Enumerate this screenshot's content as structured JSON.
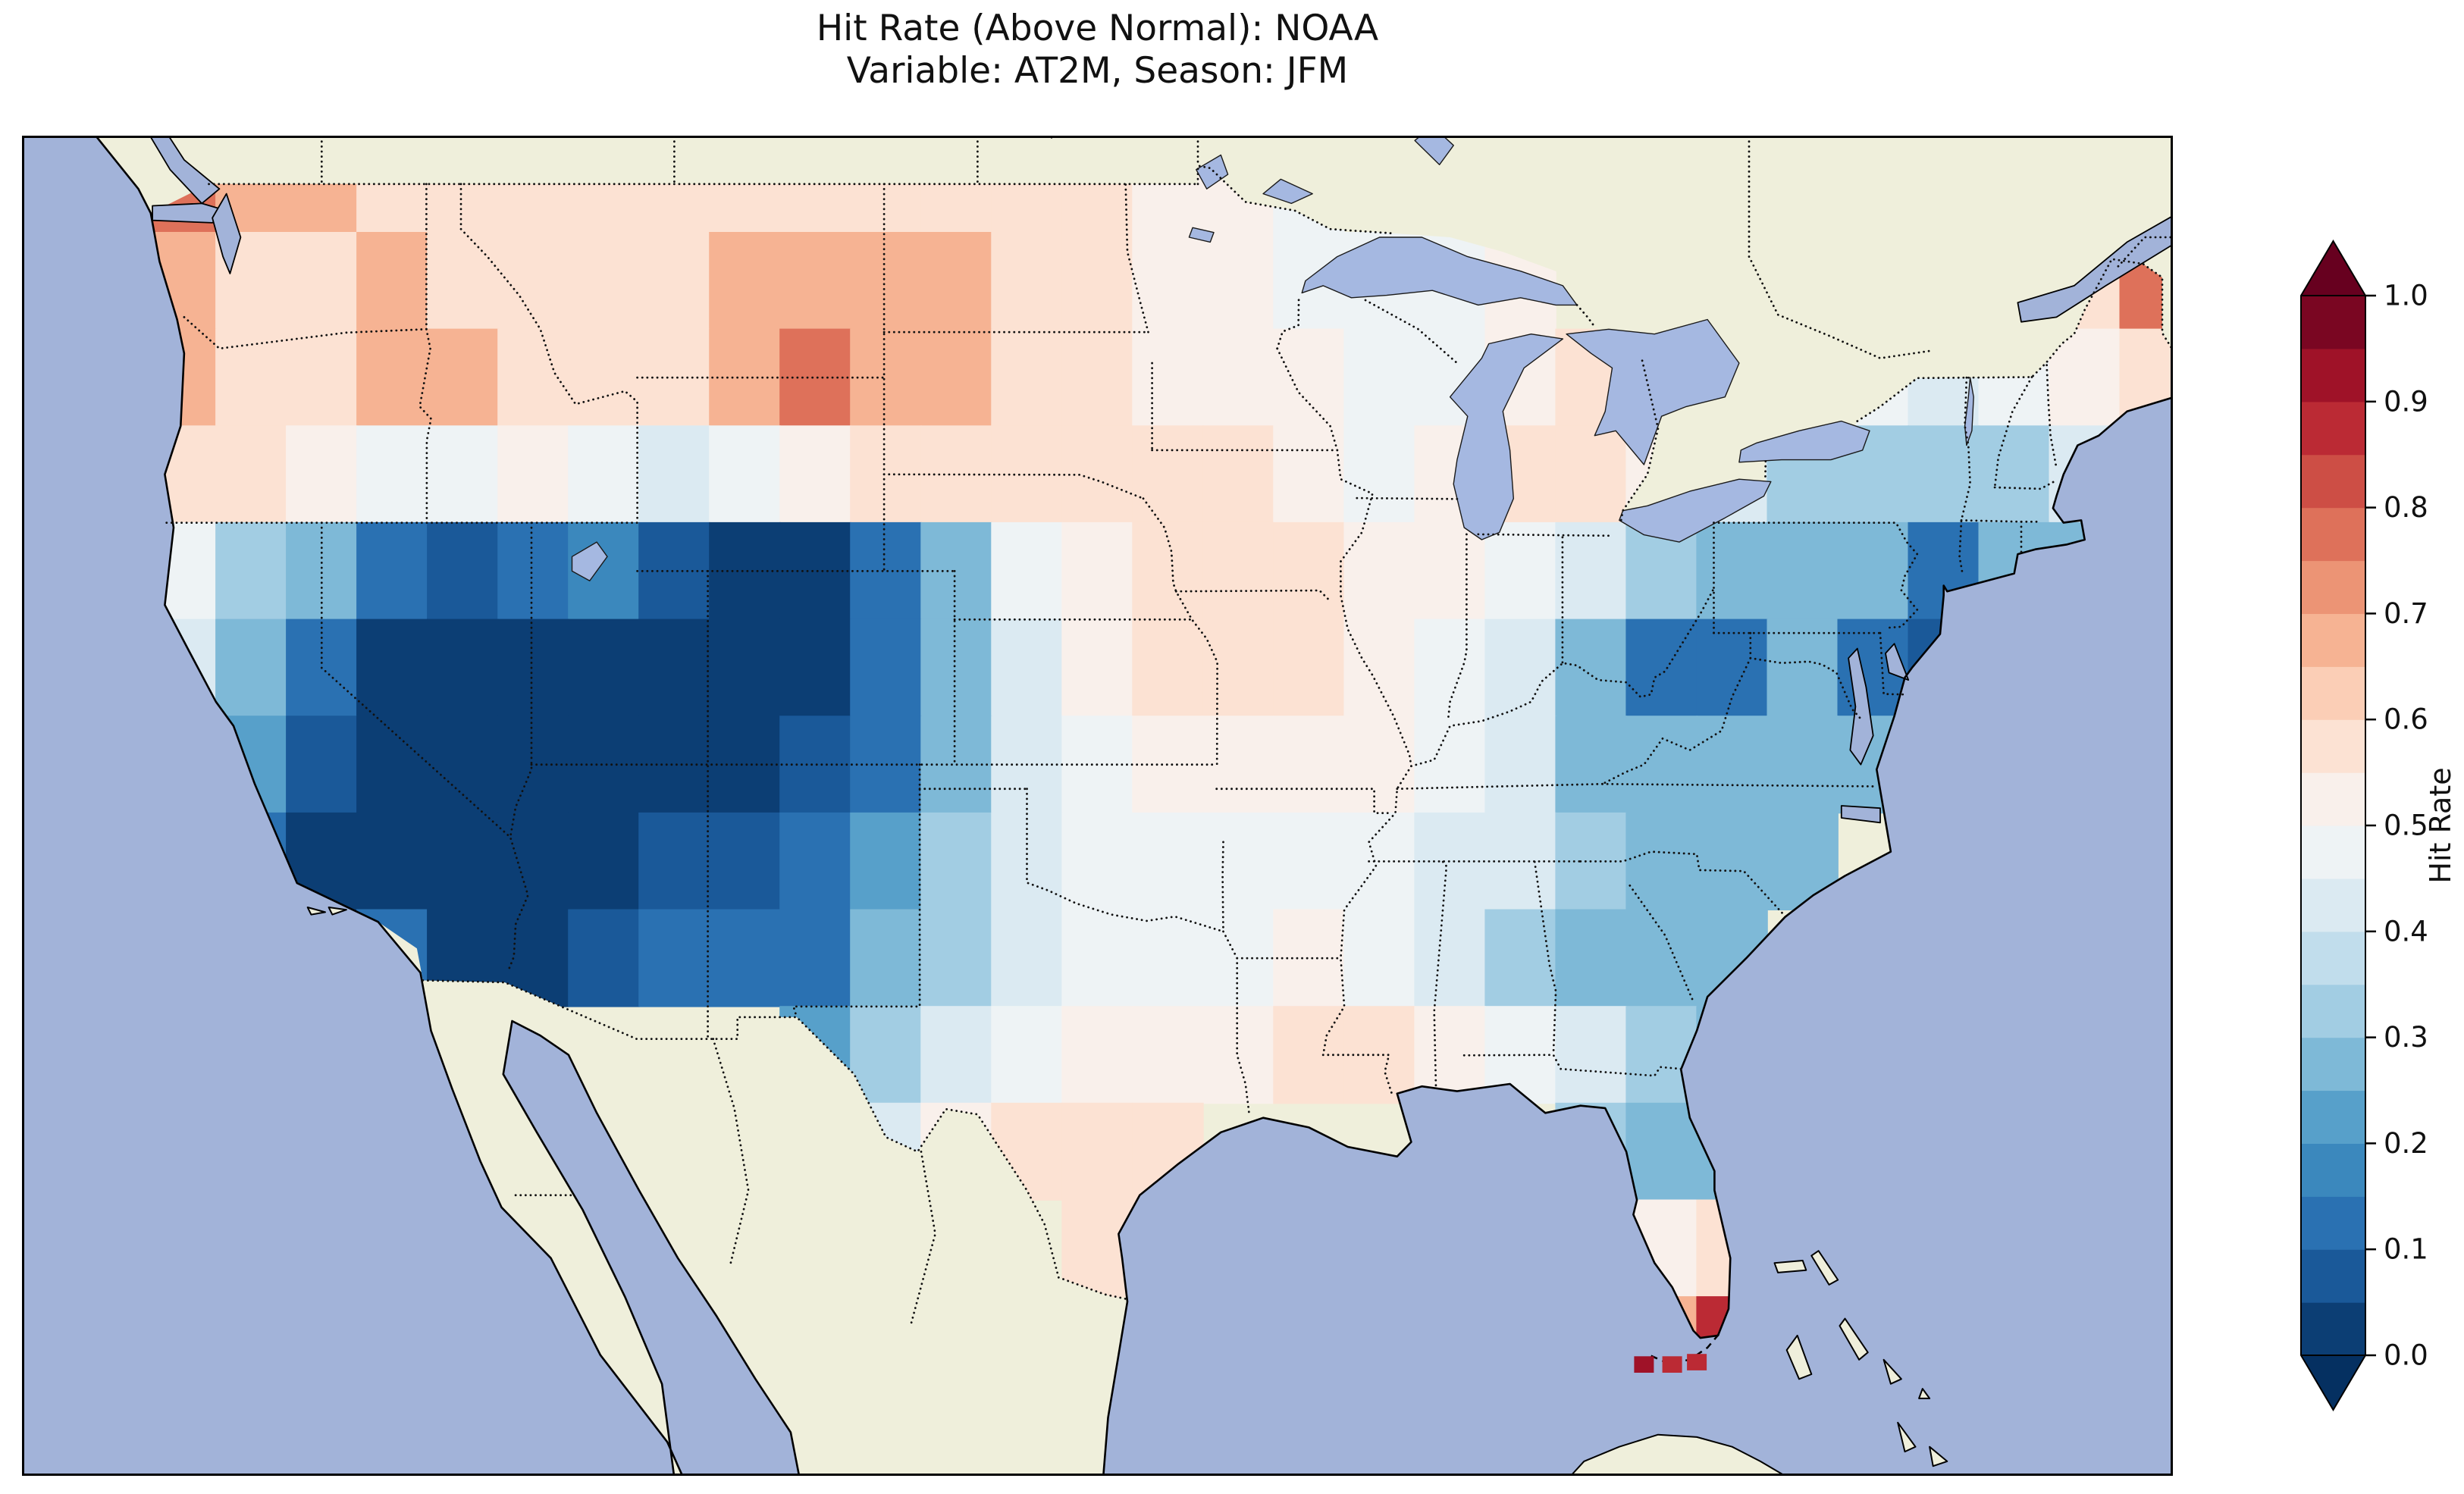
{
  "figure": {
    "title_line1": "Hit Rate (Above Normal): NOAA",
    "title_line2": "Variable: AT2M, Season: JFM"
  },
  "colorbar": {
    "label": "Hit Rate",
    "tick_labels": [
      "0.0",
      "0.1",
      "0.2",
      "0.3",
      "0.4",
      "0.5",
      "0.6",
      "0.7",
      "0.8",
      "0.9",
      "1.0"
    ],
    "vmin": 0.0,
    "vmax": 1.0,
    "band_step": 0.05,
    "colormap": "RdBu_r",
    "extend": "both"
  },
  "chart_data": {
    "type": "heatmap",
    "title": "Hit Rate (Above Normal): NOAA",
    "subtitle": "Variable: AT2M, Season: JFM",
    "metric": "Hit Rate (Above Normal)",
    "source": "NOAA",
    "variable": "AT2M",
    "season": "JFM",
    "region": "Contiguous United States",
    "colormap": "RdBu_r",
    "vmin": 0,
    "vmax": 1,
    "colorbar_label": "Hit Rate",
    "grid": {
      "lon_center_start": -124,
      "lon_step": 2,
      "n_lon": 30,
      "lat_center_start": 49,
      "lat_step": -2,
      "n_lat": 13,
      "units": "degrees"
    },
    "values": [
      [
        0.75,
        0.65,
        0.7,
        0.6,
        0.55,
        0.55,
        0.55,
        0.55,
        0.6,
        0.6,
        0.6,
        0.55,
        0.55,
        0.55,
        0.5,
        0.5,
        0.45,
        null,
        null,
        null,
        null,
        null,
        null,
        null,
        null,
        null,
        null,
        null,
        null,
        null
      ],
      [
        0.7,
        0.55,
        0.6,
        0.65,
        0.6,
        0.6,
        0.55,
        0.6,
        0.65,
        0.7,
        0.7,
        0.65,
        0.6,
        0.55,
        0.5,
        0.5,
        0.45,
        0.45,
        0.45,
        0.5,
        null,
        null,
        null,
        null,
        null,
        null,
        null,
        0.6,
        0.75,
        null
      ],
      [
        0.7,
        0.6,
        0.6,
        0.7,
        0.65,
        0.6,
        0.55,
        0.6,
        0.7,
        0.75,
        0.7,
        0.65,
        0.6,
        0.55,
        0.5,
        0.5,
        0.5,
        0.45,
        0.45,
        0.5,
        0.55,
        null,
        null,
        null,
        0.45,
        0.4,
        0.45,
        0.5,
        0.55,
        null
      ],
      [
        0.6,
        0.55,
        0.5,
        0.45,
        0.45,
        0.5,
        0.45,
        0.4,
        0.45,
        0.5,
        0.55,
        0.55,
        0.55,
        0.55,
        0.55,
        0.55,
        0.5,
        0.45,
        0.5,
        0.55,
        0.55,
        0.5,
        0.4,
        0.35,
        0.35,
        0.35,
        0.35,
        0.4,
        0.45,
        null
      ],
      [
        0.45,
        0.35,
        0.25,
        0.15,
        0.08,
        0.12,
        0.18,
        0.08,
        0.04,
        0.04,
        0.15,
        0.3,
        0.45,
        0.5,
        0.55,
        0.55,
        0.55,
        0.5,
        0.5,
        0.45,
        0.4,
        0.35,
        0.3,
        0.3,
        0.25,
        0.12,
        0.25,
        0.3,
        null,
        null
      ],
      [
        0.4,
        0.3,
        0.1,
        0.04,
        0.02,
        0.02,
        0.04,
        0.04,
        0.02,
        0.04,
        0.1,
        0.3,
        0.4,
        0.5,
        0.55,
        0.55,
        0.55,
        0.5,
        0.45,
        0.4,
        0.25,
        0.1,
        0.15,
        0.25,
        0.15,
        0.05,
        null,
        null,
        null,
        null
      ],
      [
        0.35,
        0.2,
        0.05,
        0.02,
        0.02,
        0.02,
        0.04,
        0.04,
        0.02,
        0.05,
        0.1,
        0.25,
        0.4,
        0.45,
        0.5,
        0.5,
        0.5,
        0.5,
        0.45,
        0.4,
        0.3,
        0.3,
        0.3,
        0.3,
        0.25,
        0.2,
        null,
        null,
        null,
        null
      ],
      [
        0.3,
        0.1,
        0.02,
        0.02,
        0.02,
        0.02,
        0.02,
        0.05,
        0.05,
        0.1,
        0.2,
        0.35,
        0.4,
        0.45,
        0.45,
        0.45,
        0.45,
        0.45,
        0.4,
        0.4,
        0.35,
        0.3,
        0.3,
        0.25,
        null,
        null,
        null,
        null,
        null,
        null
      ],
      [
        null,
        null,
        null,
        0.1,
        0.02,
        0.02,
        0.05,
        0.1,
        0.1,
        0.15,
        0.25,
        0.35,
        0.4,
        0.45,
        0.45,
        0.45,
        0.5,
        0.45,
        0.4,
        0.35,
        0.3,
        0.3,
        0.3,
        null,
        null,
        null,
        null,
        null,
        null,
        null
      ],
      [
        null,
        null,
        null,
        null,
        null,
        null,
        null,
        null,
        null,
        0.2,
        0.35,
        0.4,
        0.45,
        0.5,
        0.5,
        0.5,
        0.55,
        0.55,
        0.5,
        0.45,
        0.4,
        0.35,
        0.3,
        null,
        null,
        null,
        null,
        null,
        null,
        null
      ],
      [
        null,
        null,
        null,
        null,
        null,
        null,
        null,
        null,
        null,
        null,
        0.4,
        0.5,
        0.55,
        0.55,
        0.55,
        null,
        null,
        null,
        null,
        null,
        0.35,
        0.3,
        0.3,
        null,
        null,
        null,
        null,
        null,
        null,
        null
      ],
      [
        null,
        null,
        null,
        null,
        null,
        null,
        null,
        null,
        null,
        null,
        null,
        null,
        null,
        0.55,
        0.6,
        null,
        null,
        null,
        null,
        null,
        null,
        0.5,
        0.6,
        null,
        null,
        null,
        null,
        null,
        null,
        null
      ],
      [
        null,
        null,
        null,
        null,
        null,
        null,
        null,
        null,
        null,
        null,
        null,
        null,
        null,
        null,
        null,
        null,
        null,
        null,
        null,
        null,
        null,
        0.7,
        0.85,
        null,
        null,
        null,
        null,
        null,
        null,
        null
      ]
    ],
    "extra_cells": [
      {
        "lon": -82.5,
        "lat": 24.6,
        "value": 0.9
      },
      {
        "lon": -81.7,
        "lat": 24.6,
        "value": 0.85
      },
      {
        "lon": -81.0,
        "lat": 24.65,
        "value": 0.85
      }
    ]
  }
}
